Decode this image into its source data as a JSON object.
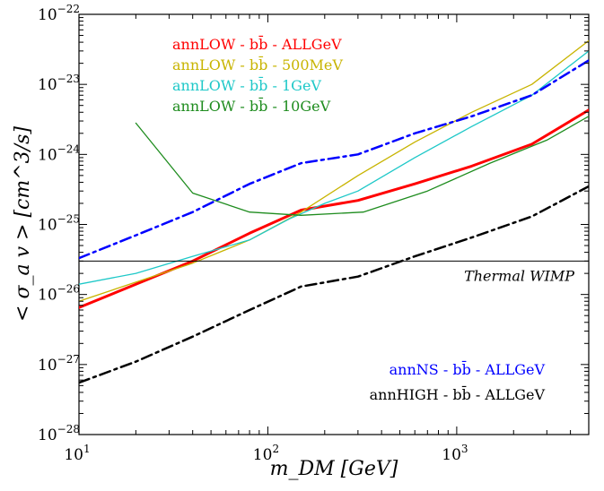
{
  "chart_data": {
    "type": "line",
    "xlabel": "m_DM [GeV]",
    "ylabel": "< σ_a v > [cm^3/s]",
    "xscale": "log",
    "yscale": "log",
    "xlim": [
      10,
      5000
    ],
    "ylim": [
      1e-28,
      1e-22
    ],
    "grid": false,
    "legend_position": "top-left and bottom-right",
    "x_ticks": [
      {
        "value": 10,
        "label": "10",
        "exp": "1"
      },
      {
        "value": 100,
        "label": "10",
        "exp": "2"
      },
      {
        "value": 1000,
        "label": "10",
        "exp": "3"
      }
    ],
    "y_ticks": [
      {
        "value": 1e-28,
        "label": "10",
        "exp": "−28"
      },
      {
        "value": 1e-27,
        "label": "10",
        "exp": "−27"
      },
      {
        "value": 1e-26,
        "label": "10",
        "exp": "−26"
      },
      {
        "value": 1e-25,
        "label": "10",
        "exp": "−25"
      },
      {
        "value": 1e-24,
        "label": "10",
        "exp": "−24"
      },
      {
        "value": 1e-23,
        "label": "10",
        "exp": "−23"
      },
      {
        "value": 1e-22,
        "label": "10",
        "exp": "−22"
      }
    ],
    "hlines": [
      {
        "name": "Thermal WIMP",
        "y": 3e-26,
        "color": "#000000"
      }
    ],
    "series": [
      {
        "name": "annLOW - bb̄ - ALLGeV",
        "color": "#ff0000",
        "dash": "solid",
        "width": 3,
        "legend_group": "top",
        "x": [
          10,
          20,
          40,
          80,
          150,
          300,
          600,
          1200,
          2500,
          5000
        ],
        "y": [
          6.5e-27,
          1.4e-26,
          3e-26,
          7.5e-26,
          1.6e-25,
          2.2e-25,
          3.8e-25,
          6.8e-25,
          1.4e-24,
          4.3e-24
        ]
      },
      {
        "name": "annLOW - bb̄ - 500MeV",
        "color": "#c8b400",
        "dash": "solid",
        "width": 1.3,
        "legend_group": "top",
        "x": [
          10,
          20,
          40,
          80,
          150,
          300,
          600,
          1200,
          2500,
          5000
        ],
        "y": [
          8e-27,
          1.5e-26,
          2.8e-26,
          6e-26,
          1.5e-25,
          5e-25,
          1.5e-24,
          4e-24,
          1e-23,
          4.2e-23
        ]
      },
      {
        "name": "annLOW - bb̄ - 1GeV",
        "color": "#1ec8c8",
        "dash": "solid",
        "width": 1.3,
        "legend_group": "top",
        "x": [
          10,
          20,
          40,
          80,
          130,
          200,
          300,
          600,
          1200,
          2500,
          5000
        ],
        "y": [
          1.4e-26,
          2e-26,
          3.5e-26,
          6e-26,
          1.2e-25,
          2e-25,
          3e-25,
          9e-25,
          2.5e-24,
          7e-24,
          3e-23
        ]
      },
      {
        "name": "annLOW - bb̄ - 10GeV",
        "color": "#1e8c1e",
        "dash": "solid",
        "width": 1.3,
        "legend_group": "top",
        "x": [
          20,
          40,
          80,
          150,
          320,
          700,
          1500,
          3000,
          5000
        ],
        "y": [
          2.8e-24,
          2.8e-25,
          1.5e-25,
          1.35e-25,
          1.5e-25,
          3e-25,
          7.5e-25,
          1.6e-24,
          3.5e-24
        ]
      },
      {
        "name": "annNS - bb̄ - ALLGeV",
        "color": "#0000ff",
        "dash": "dashdot",
        "width": 2.5,
        "legend_group": "bottom",
        "x": [
          10,
          20,
          40,
          80,
          150,
          300,
          600,
          1200,
          2500,
          5000
        ],
        "y": [
          3.3e-26,
          7e-26,
          1.5e-25,
          3.8e-25,
          7.5e-25,
          1e-24,
          2e-24,
          3.5e-24,
          7e-24,
          2.2e-23
        ]
      },
      {
        "name": "annHIGH - bb̄ - ALLGeV",
        "color": "#000000",
        "dash": "dashdot",
        "width": 2.5,
        "legend_group": "bottom",
        "x": [
          10,
          20,
          40,
          80,
          150,
          300,
          600,
          1200,
          2500,
          5000
        ],
        "y": [
          5.5e-28,
          1.1e-27,
          2.5e-27,
          6e-27,
          1.3e-26,
          1.8e-26,
          3.5e-26,
          6.5e-26,
          1.3e-25,
          3.5e-25
        ]
      }
    ]
  }
}
